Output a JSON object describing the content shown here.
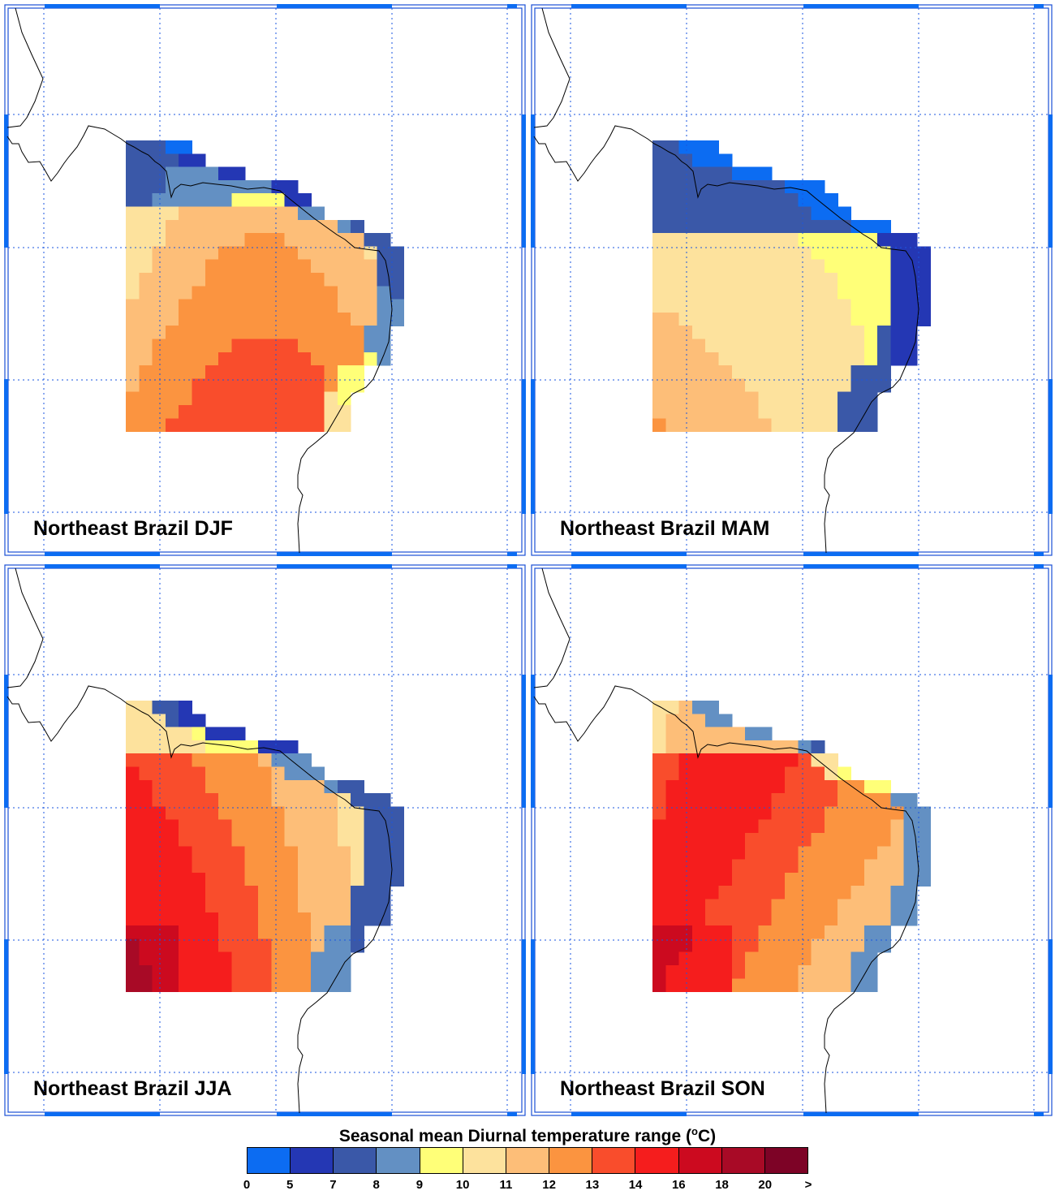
{
  "panels": [
    {
      "title": "Northeast Brazil DJF"
    },
    {
      "title": "Northeast Brazil MAM"
    },
    {
      "title": "Northeast Brazil JJA"
    },
    {
      "title": "Northeast Brazil SON"
    }
  ],
  "legend": {
    "title_main": "Seasonal mean Diurnal temperature range (",
    "title_sup": "o",
    "title_unit": "C)",
    "colors": [
      "#0c6cf2",
      "#2437b4",
      "#3a58a8",
      "#6390c3",
      "#ffff78",
      "#fde29d",
      "#fdbe78",
      "#fb9440",
      "#f94d2c",
      "#f51d1d",
      "#cc0a1f",
      "#a80a26",
      "#7d0326"
    ],
    "tick_labels": [
      "0",
      "5",
      "7",
      "8",
      "9",
      "10",
      "11",
      "12",
      "13",
      "14",
      "16",
      "18",
      "20",
      ">"
    ]
  }
}
